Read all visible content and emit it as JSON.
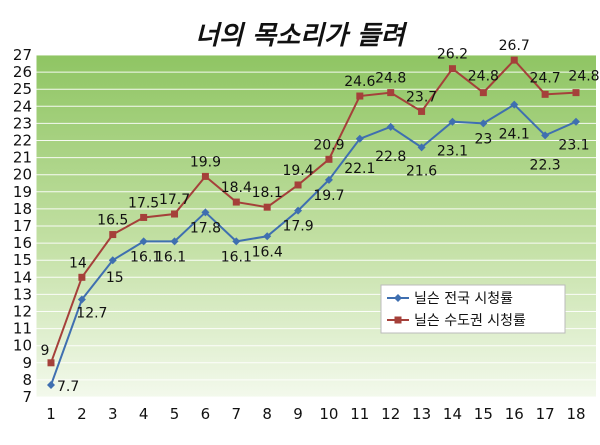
{
  "chart_data": {
    "type": "line",
    "title": "너의 목소리가 들려",
    "xlabel": "",
    "ylabel": "",
    "categories": [
      "1",
      "2",
      "3",
      "4",
      "5",
      "6",
      "7",
      "8",
      "9",
      "10",
      "11",
      "12",
      "13",
      "14",
      "15",
      "16",
      "17",
      "18"
    ],
    "ylim": [
      7,
      27
    ],
    "yticks": [
      7,
      8,
      9,
      10,
      11,
      12,
      13,
      14,
      15,
      16,
      17,
      18,
      19,
      20,
      21,
      22,
      23,
      24,
      25,
      26,
      27
    ],
    "grid": true,
    "legend_position": "right",
    "series": [
      {
        "name": "닐슨 전국 시청률",
        "color": "#3f6fb0",
        "marker": "diamond",
        "values": [
          7.7,
          12.7,
          15,
          16.1,
          16.1,
          17.8,
          16.1,
          16.4,
          17.9,
          19.7,
          22.1,
          22.8,
          21.6,
          23.1,
          23,
          24.1,
          22.3,
          23.1
        ],
        "labels": [
          "7.7",
          "12.7",
          "15",
          "16.1",
          "16.1",
          "17.8",
          "16.1",
          "16.4",
          "17.9",
          "19.7",
          "22.1",
          "22.8",
          "21.6",
          "23.1",
          "23",
          "24.1",
          "22.3",
          "23.1"
        ]
      },
      {
        "name": "닐슨 수도권 시청률",
        "color": "#a5403a",
        "marker": "square",
        "values": [
          9,
          14,
          16.5,
          17.5,
          17.7,
          19.9,
          18.4,
          18.1,
          19.4,
          20.9,
          24.6,
          24.8,
          23.7,
          26.2,
          24.8,
          26.7,
          24.7,
          24.8
        ],
        "labels": [
          "9",
          "14",
          "16.5",
          "17.5",
          "17.7",
          "19.9",
          "18.4",
          "18.1",
          "19.4",
          "20.9",
          "24.6",
          "24.8",
          "23.7",
          "26.2",
          "24.8",
          "26.7",
          "24.7",
          "24.8"
        ]
      }
    ]
  }
}
